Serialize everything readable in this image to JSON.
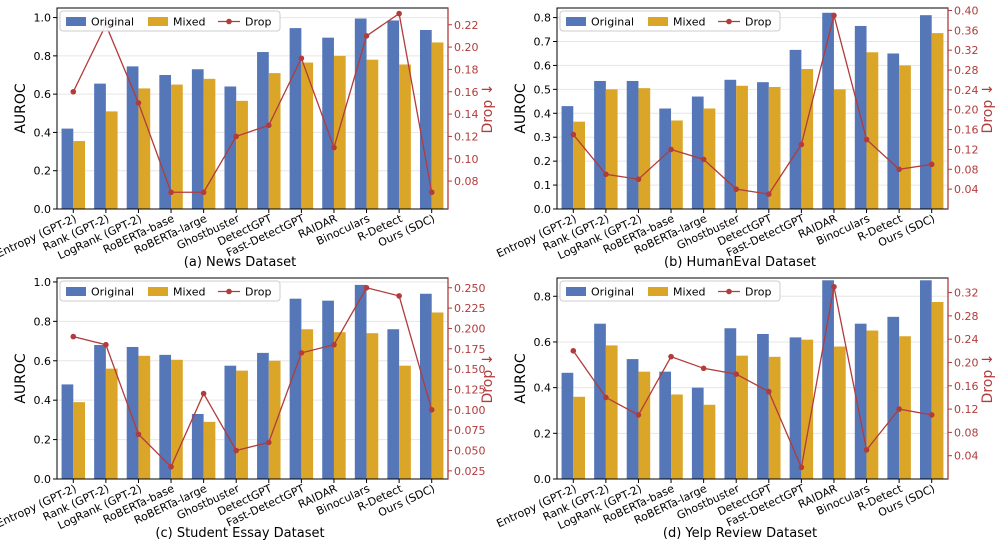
{
  "figure": {
    "colors": {
      "original": "#5577b8",
      "mixed": "#dba628",
      "drop": "#b23b3b",
      "grid": "#e6e6e6"
    },
    "legend_labels": [
      "Original",
      "Mixed",
      "Drop"
    ]
  },
  "chart_data": [
    {
      "type": "bar",
      "title": "(a) News Dataset",
      "ylabel": "AUROC",
      "y2label": "Drop ↓",
      "categories": [
        "Entropy (GPT-2)",
        "Rank (GPT-2)",
        "LogRank (GPT-2)",
        "RoBERTa-base",
        "RoBERTa-large",
        "Ghostbuster",
        "DetectGPT",
        "Fast-DetectGPT",
        "RAIDAR",
        "Binoculars",
        "R-Detect",
        "Ours (SDC)"
      ],
      "ylim": [
        0,
        1.05
      ],
      "yticks": [
        "0.0",
        "0.2",
        "0.4",
        "0.6",
        "0.8",
        "1.0"
      ],
      "y2lim": [
        0.055,
        0.235
      ],
      "y2ticks": [
        "0.08",
        "0.10",
        "0.12",
        "0.14",
        "0.16",
        "0.18",
        "0.20",
        "0.22"
      ],
      "legend": "top-left",
      "series": [
        {
          "name": "Original",
          "type": "bar",
          "values": [
            0.42,
            0.655,
            0.745,
            0.7,
            0.73,
            0.64,
            0.82,
            0.945,
            0.895,
            0.995,
            0.985,
            0.935
          ]
        },
        {
          "name": "Mixed",
          "type": "bar",
          "values": [
            0.355,
            0.51,
            0.63,
            0.65,
            0.68,
            0.565,
            0.71,
            0.765,
            0.8,
            0.78,
            0.755,
            0.87
          ]
        },
        {
          "name": "Drop",
          "type": "line",
          "axis": "right",
          "values": [
            0.16,
            0.22,
            0.15,
            0.07,
            0.07,
            0.12,
            0.13,
            0.19,
            0.11,
            0.21,
            0.23,
            0.07
          ]
        }
      ]
    },
    {
      "type": "bar",
      "title": "(b) HumanEval Dataset",
      "ylabel": "AUROC",
      "y2label": "Drop ↓",
      "categories": [
        "Entropy (GPT-2)",
        "Rank (GPT-2)",
        "LogRank (GPT-2)",
        "RoBERTa-base",
        "RoBERTa-large",
        "Ghostbuster",
        "DetectGPT",
        "Fast-DetectGPT",
        "RAIDAR",
        "Binoculars",
        "R-Detect",
        "Ours (SDC)"
      ],
      "ylim": [
        0,
        0.84
      ],
      "yticks": [
        "0.0",
        "0.1",
        "0.2",
        "0.3",
        "0.4",
        "0.5",
        "0.6",
        "0.7",
        "0.8"
      ],
      "y2lim": [
        0.0,
        0.405
      ],
      "y2ticks": [
        "0.04",
        "0.08",
        "0.12",
        "0.16",
        "0.20",
        "0.24",
        "0.28",
        "0.32",
        "0.36",
        "0.40"
      ],
      "legend": "top-left",
      "series": [
        {
          "name": "Original",
          "type": "bar",
          "values": [
            0.43,
            0.535,
            0.535,
            0.42,
            0.47,
            0.54,
            0.53,
            0.665,
            0.82,
            0.765,
            0.65,
            0.81
          ]
        },
        {
          "name": "Mixed",
          "type": "bar",
          "values": [
            0.365,
            0.5,
            0.505,
            0.37,
            0.42,
            0.515,
            0.51,
            0.585,
            0.5,
            0.655,
            0.6,
            0.735
          ]
        },
        {
          "name": "Drop",
          "type": "line",
          "axis": "right",
          "values": [
            0.15,
            0.07,
            0.06,
            0.12,
            0.1,
            0.04,
            0.03,
            0.13,
            0.39,
            0.14,
            0.08,
            0.09
          ]
        }
      ]
    },
    {
      "type": "bar",
      "title": "(c) Student Essay Dataset",
      "ylabel": "AUROC",
      "y2label": "Drop ↓",
      "categories": [
        "Entropy (GPT-2)",
        "Rank (GPT-2)",
        "LogRank (GPT-2)",
        "RoBERTa-base",
        "RoBERTa-large",
        "Ghostbuster",
        "DetectGPT",
        "Fast-DetectGPT",
        "RAIDAR",
        "Binoculars",
        "R-Detect",
        "Ours (SDC)"
      ],
      "ylim": [
        0,
        1.02
      ],
      "yticks": [
        "0.0",
        "0.2",
        "0.4",
        "0.6",
        "0.8",
        "1.0"
      ],
      "y2lim": [
        0.015,
        0.262
      ],
      "y2ticks": [
        "0.025",
        "0.050",
        "0.075",
        "0.100",
        "0.125",
        "0.150",
        "0.175",
        "0.200",
        "0.225",
        "0.250"
      ],
      "legend": "top-left",
      "series": [
        {
          "name": "Original",
          "type": "bar",
          "values": [
            0.48,
            0.68,
            0.67,
            0.63,
            0.33,
            0.575,
            0.64,
            0.915,
            0.905,
            0.985,
            0.76,
            0.94
          ]
        },
        {
          "name": "Mixed",
          "type": "bar",
          "values": [
            0.39,
            0.56,
            0.625,
            0.605,
            0.29,
            0.55,
            0.6,
            0.76,
            0.745,
            0.74,
            0.575,
            0.845
          ]
        },
        {
          "name": "Drop",
          "type": "line",
          "axis": "right",
          "values": [
            0.19,
            0.18,
            0.07,
            0.03,
            0.12,
            0.05,
            0.06,
            0.17,
            0.18,
            0.25,
            0.24,
            0.1
          ]
        }
      ]
    },
    {
      "type": "bar",
      "title": "(d) Yelp Review Dataset",
      "ylabel": "AUROC",
      "y2label": "Drop ↓",
      "categories": [
        "Entropy (GPT-2)",
        "Rank (GPT-2)",
        "LogRank (GPT-2)",
        "RoBERTa-base",
        "RoBERTa-large",
        "Ghostbuster",
        "DetectGPT",
        "Fast-DetectGPT",
        "RAIDAR",
        "Binoculars",
        "R-Detect",
        "Ours (SDC)"
      ],
      "ylim": [
        0,
        0.88
      ],
      "yticks": [
        "0.0",
        "0.2",
        "0.4",
        "0.6",
        "0.8"
      ],
      "y2lim": [
        0.0,
        0.345
      ],
      "y2ticks": [
        "0.04",
        "0.08",
        "0.12",
        "0.16",
        "0.20",
        "0.24",
        "0.28",
        "0.32"
      ],
      "legend": "top-left",
      "series": [
        {
          "name": "Original",
          "type": "bar",
          "values": [
            0.465,
            0.68,
            0.525,
            0.47,
            0.4,
            0.66,
            0.635,
            0.62,
            0.87,
            0.68,
            0.71,
            0.87
          ]
        },
        {
          "name": "Mixed",
          "type": "bar",
          "values": [
            0.36,
            0.585,
            0.47,
            0.37,
            0.325,
            0.54,
            0.535,
            0.61,
            0.58,
            0.65,
            0.625,
            0.775
          ]
        },
        {
          "name": "Drop",
          "type": "line",
          "axis": "right",
          "values": [
            0.22,
            0.14,
            0.11,
            0.21,
            0.19,
            0.18,
            0.15,
            0.02,
            0.33,
            0.05,
            0.12,
            0.11
          ]
        }
      ]
    }
  ]
}
